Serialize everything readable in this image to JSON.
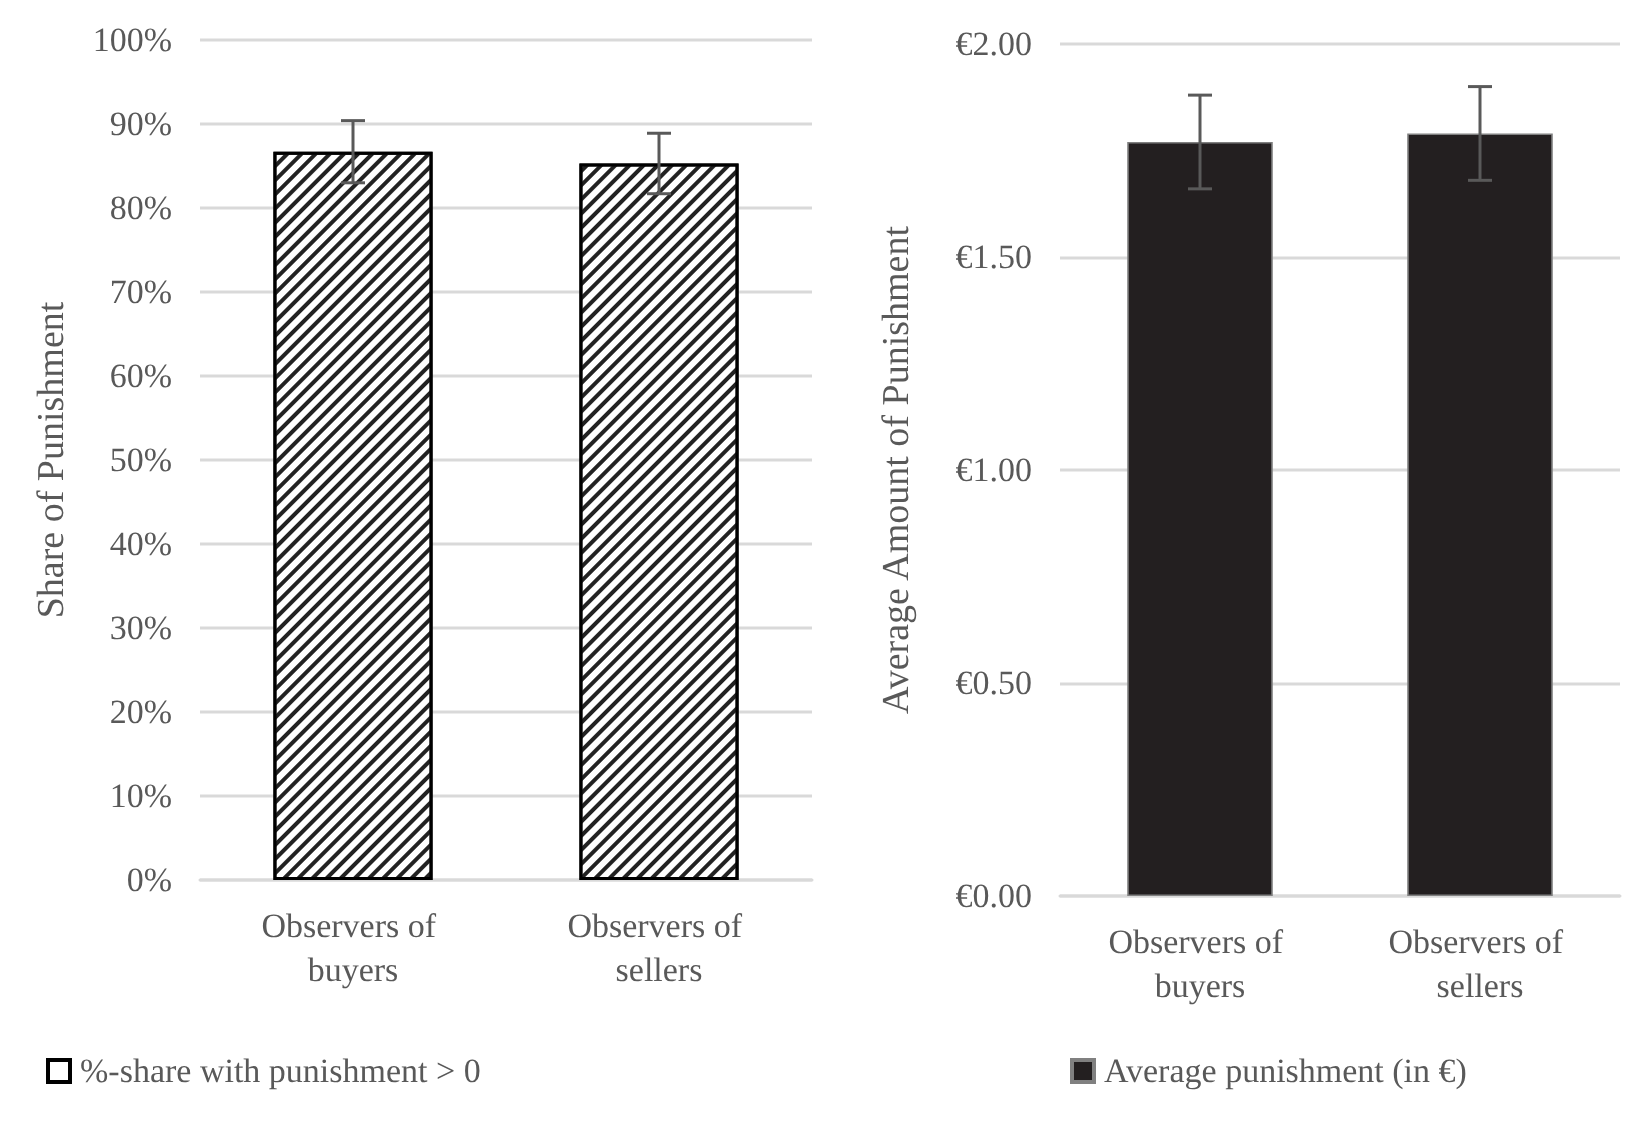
{
  "chart_data": [
    {
      "type": "bar",
      "ylabel": "Share of Punishment",
      "categories": [
        "Observers of buyers",
        "Observers of sellers"
      ],
      "series": [
        {
          "name": "%-share with punishment > 0",
          "color": "#ffffff",
          "values": [
            86.7,
            85.3
          ],
          "errors": [
            3.7,
            3.6
          ]
        }
      ],
      "ylim": [
        0,
        100
      ],
      "yticks": [
        {
          "value": 0,
          "label": "0%"
        },
        {
          "value": 10,
          "label": "10%"
        },
        {
          "value": 20,
          "label": "20%"
        },
        {
          "value": 30,
          "label": "30%"
        },
        {
          "value": 40,
          "label": "40%"
        },
        {
          "value": 50,
          "label": "50%"
        },
        {
          "value": 60,
          "label": "60%"
        },
        {
          "value": 70,
          "label": "70%"
        },
        {
          "value": 80,
          "label": "80%"
        },
        {
          "value": 90,
          "label": "90%"
        },
        {
          "value": 100,
          "label": "100%"
        }
      ],
      "grid": "y",
      "legend": "bottom left"
    },
    {
      "type": "bar",
      "ylabel": "Average Amount of Punishment",
      "categories": [
        "Observers of buyers",
        "Observers of sellers"
      ],
      "series": [
        {
          "name": "Average punishment (in €)",
          "color": "#231f20",
          "values": [
            1.77,
            1.79
          ],
          "errors": [
            0.11,
            0.11
          ]
        }
      ],
      "ylim": [
        0,
        2
      ],
      "yticks": [
        {
          "value": 0,
          "label": "€0.00"
        },
        {
          "value": 0.5,
          "label": "€0.50"
        },
        {
          "value": 1,
          "label": "€1.00"
        },
        {
          "value": 1.5,
          "label": "€1.50"
        },
        {
          "value": 2,
          "label": "€2.00"
        }
      ],
      "grid": "y",
      "legend": "bottom left"
    }
  ]
}
